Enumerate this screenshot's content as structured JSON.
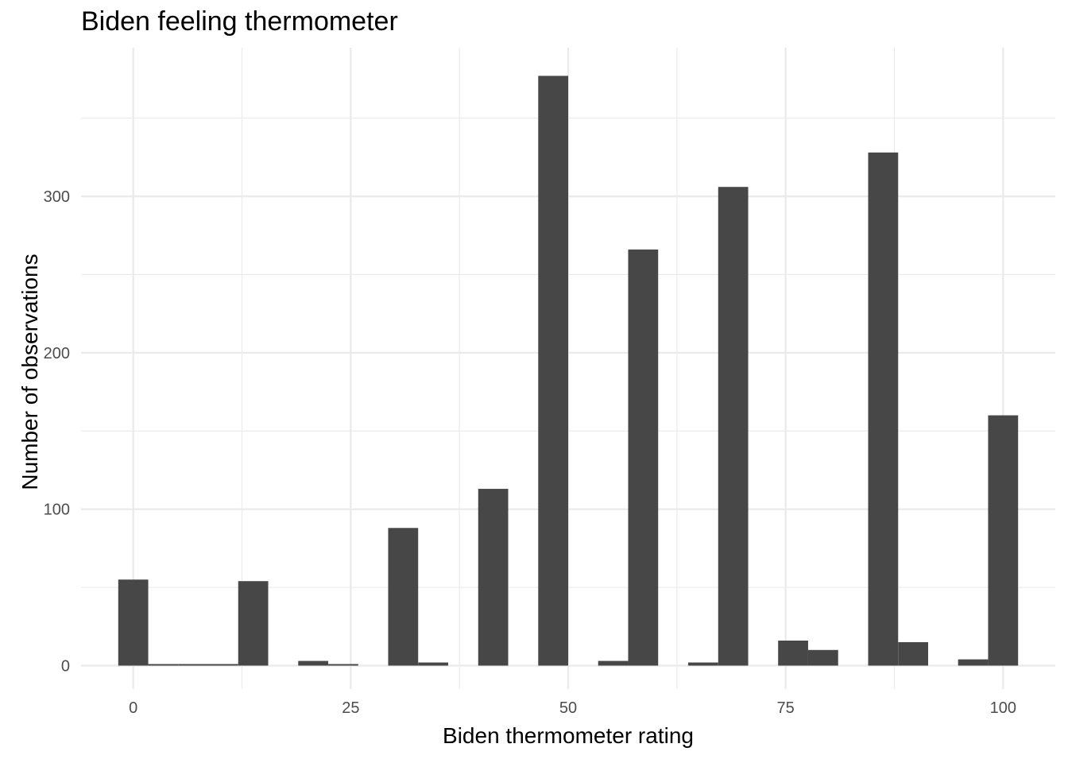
{
  "chart_data": {
    "type": "bar",
    "title": "Biden feeling thermometer",
    "xlabel": "Biden thermometer rating",
    "ylabel": "Number of observations",
    "bar_color": "#474747",
    "grid": true,
    "bin_width": 3.448,
    "x_start": 0,
    "x": [
      0,
      3.45,
      6.9,
      10.34,
      13.79,
      17.24,
      20.69,
      24.14,
      27.59,
      31.03,
      34.48,
      37.93,
      41.38,
      44.83,
      48.28,
      51.72,
      55.17,
      58.62,
      62.07,
      65.52,
      68.97,
      72.41,
      75.86,
      79.31,
      82.76,
      86.21,
      89.66,
      93.1,
      96.55,
      100
    ],
    "values": [
      55,
      1,
      1,
      1,
      54,
      0,
      3,
      1,
      0,
      88,
      2,
      0,
      113,
      0,
      377,
      0,
      3,
      266,
      0,
      2,
      306,
      0,
      16,
      10,
      0,
      328,
      15,
      0,
      4,
      160
    ],
    "xlim": [
      -6,
      106
    ],
    "ylim": [
      -15,
      395
    ],
    "x_ticks": [
      0,
      25,
      50,
      75,
      100
    ],
    "x_tick_labels": [
      "0",
      "25",
      "50",
      "75",
      "100"
    ],
    "y_ticks": [
      0,
      100,
      200,
      300
    ],
    "y_tick_labels": [
      "0",
      "100",
      "200",
      "300"
    ]
  }
}
